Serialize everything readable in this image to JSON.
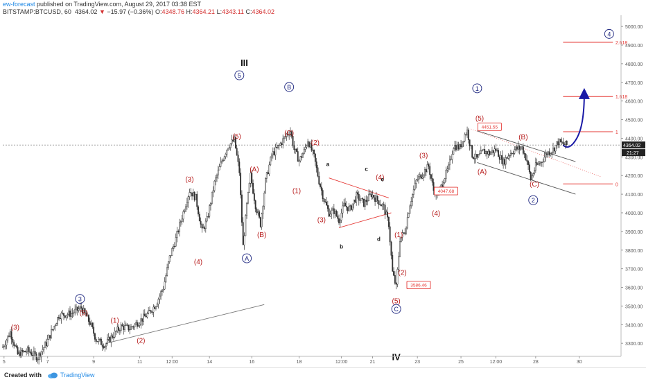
{
  "header": {
    "author": "ew-forecast",
    "published_text": " published on TradingView.com, August 29, 2017 03:38 EST",
    "symbol": "BITSTAMP:BTCUSD, 60",
    "last": "4364.02",
    "change": "−15.97 (−0.36%)",
    "arrow": "▼",
    "o_label": "O:",
    "o": "4348.76",
    "h_label": "H:",
    "h": "4364.21",
    "l_label": "L:",
    "l": "4343.11",
    "c_label": "C:",
    "c": "4364.02"
  },
  "footer": {
    "created_with": "Created with",
    "brand": "TradingView"
  },
  "colors": {
    "wave_red": "#b71c1c",
    "wave_blue": "#1a237e",
    "fib_red": "#e53935",
    "candle": "#333333",
    "arrow": "#1a1aa6"
  },
  "chart_data": {
    "type": "candlestick",
    "symbol": "BITSTAMP:BTCUSD",
    "interval": "60",
    "ylim": [
      3230,
      5060
    ],
    "y_ticks": [
      "5000.00",
      "4900.00",
      "4800.00",
      "4700.00",
      "4600.00",
      "4500.00",
      "4400.00",
      "4300.00",
      "4200.00",
      "4100.00",
      "4000.00",
      "3900.00",
      "3800.00",
      "3700.00",
      "3600.00",
      "3500.00",
      "3400.00",
      "3300.00"
    ],
    "y_tick_values": [
      5000,
      4900,
      4800,
      4700,
      4600,
      4500,
      4400,
      4300,
      4200,
      4100,
      4000,
      3900,
      3800,
      3700,
      3600,
      3500,
      3400,
      3300
    ],
    "x_ticks": [
      "5",
      "7",
      "9",
      "11",
      "12:00",
      "14",
      "16",
      "18",
      "12:00",
      "21",
      "23",
      "25",
      "12:00",
      "28",
      "30"
    ],
    "x_tick_index": [
      1,
      36,
      73,
      110,
      136,
      166,
      200,
      238,
      272,
      297,
      333,
      368,
      396,
      428,
      463
    ],
    "last_price_label": "4364.02",
    "countdown_label": "21:27",
    "price_path": [
      [
        0,
        3280
      ],
      [
        6,
        3360
      ],
      [
        12,
        3240
      ],
      [
        20,
        3260
      ],
      [
        28,
        3225
      ],
      [
        35,
        3300
      ],
      [
        45,
        3450
      ],
      [
        55,
        3460
      ],
      [
        63,
        3490
      ],
      [
        70,
        3410
      ],
      [
        75,
        3320
      ],
      [
        82,
        3290
      ],
      [
        88,
        3340
      ],
      [
        95,
        3390
      ],
      [
        102,
        3380
      ],
      [
        110,
        3420
      ],
      [
        117,
        3460
      ],
      [
        123,
        3510
      ],
      [
        129,
        3600
      ],
      [
        134,
        3760
      ],
      [
        139,
        3860
      ],
      [
        144,
        3980
      ],
      [
        150,
        4120
      ],
      [
        155,
        4080
      ],
      [
        160,
        3900
      ],
      [
        164,
        3960
      ],
      [
        170,
        4160
      ],
      [
        176,
        4280
      ],
      [
        181,
        4360
      ],
      [
        186,
        4390
      ],
      [
        190,
        4220
      ],
      [
        193,
        3820
      ],
      [
        196,
        4040
      ],
      [
        199,
        4200
      ],
      [
        203,
        4040
      ],
      [
        207,
        3940
      ],
      [
        211,
        4170
      ],
      [
        216,
        4310
      ],
      [
        222,
        4360
      ],
      [
        228,
        4420
      ],
      [
        231,
        4440
      ],
      [
        234,
        4340
      ],
      [
        238,
        4280
      ],
      [
        242,
        4330
      ],
      [
        245,
        4390
      ],
      [
        250,
        4300
      ],
      [
        254,
        4170
      ],
      [
        258,
        4070
      ],
      [
        262,
        4000
      ],
      [
        266,
        4010
      ],
      [
        270,
        3960
      ],
      [
        274,
        4040
      ],
      [
        279,
        4020
      ],
      [
        284,
        4090
      ],
      [
        290,
        4050
      ],
      [
        296,
        4100
      ],
      [
        302,
        4060
      ],
      [
        306,
        4030
      ],
      [
        310,
        3940
      ],
      [
        313,
        3680
      ],
      [
        316,
        3600
      ],
      [
        319,
        3860
      ],
      [
        323,
        3900
      ],
      [
        327,
        4050
      ],
      [
        332,
        4170
      ],
      [
        337,
        4210
      ],
      [
        342,
        4250
      ],
      [
        346,
        4120
      ],
      [
        350,
        4100
      ],
      [
        354,
        4180
      ],
      [
        358,
        4240
      ],
      [
        362,
        4360
      ],
      [
        367,
        4350
      ],
      [
        371,
        4420
      ],
      [
        373,
        4440
      ],
      [
        377,
        4310
      ],
      [
        381,
        4290
      ],
      [
        386,
        4330
      ],
      [
        391,
        4320
      ],
      [
        396,
        4340
      ],
      [
        402,
        4270
      ],
      [
        406,
        4310
      ],
      [
        411,
        4340
      ],
      [
        417,
        4350
      ],
      [
        421,
        4280
      ],
      [
        424,
        4180
      ],
      [
        428,
        4250
      ],
      [
        432,
        4270
      ],
      [
        437,
        4320
      ],
      [
        442,
        4340
      ],
      [
        446,
        4380
      ],
      [
        450,
        4370
      ],
      [
        453,
        4364
      ]
    ],
    "labels_blue_circled": [
      {
        "text": "5",
        "i": 190,
        "v": 4738
      },
      {
        "text": "B",
        "i": 230,
        "v": 4675
      },
      {
        "text": "3",
        "i": 62,
        "v": 3538
      },
      {
        "text": "A",
        "i": 196,
        "v": 3756
      },
      {
        "text": "1",
        "i": 381,
        "v": 4668
      },
      {
        "text": "2",
        "i": 426,
        "v": 4068
      },
      {
        "text": "C",
        "i": 316,
        "v": 3484
      },
      {
        "text": "4",
        "i": 487,
        "v": 4960
      }
    ],
    "labels_red": [
      {
        "text": "(3)",
        "i": 10,
        "v": 3388
      },
      {
        "text": "(5)",
        "i": 65,
        "v": 3466
      },
      {
        "text": "(1)",
        "i": 90,
        "v": 3426
      },
      {
        "text": "(2)",
        "i": 111,
        "v": 3317
      },
      {
        "text": "(4)",
        "i": 157,
        "v": 3740
      },
      {
        "text": "(3)",
        "i": 150,
        "v": 4183
      },
      {
        "text": "(5)",
        "i": 188,
        "v": 4413
      },
      {
        "text": "(A)",
        "i": 202,
        "v": 4237
      },
      {
        "text": "(B)",
        "i": 208,
        "v": 3885
      },
      {
        "text": "(C)",
        "i": 230,
        "v": 4431
      },
      {
        "text": "(1)",
        "i": 236,
        "v": 4120
      },
      {
        "text": "(2)",
        "i": 251,
        "v": 4379
      },
      {
        "text": "(3)",
        "i": 256,
        "v": 3965
      },
      {
        "text": "(4)",
        "i": 303,
        "v": 4194
      },
      {
        "text": "(3)",
        "i": 338,
        "v": 4310
      },
      {
        "text": "(4)",
        "i": 348,
        "v": 4000
      },
      {
        "text": "(1)",
        "i": 318,
        "v": 3885
      },
      {
        "text": "(2)",
        "i": 321,
        "v": 3682
      },
      {
        "text": "(5)",
        "i": 316,
        "v": 3530
      },
      {
        "text": "(5)",
        "i": 383,
        "v": 4510
      },
      {
        "text": "(A)",
        "i": 385,
        "v": 4224
      },
      {
        "text": "(B)",
        "i": 418,
        "v": 4410
      },
      {
        "text": "(C)",
        "i": 427,
        "v": 4156
      }
    ],
    "labels_black_bold": [
      {
        "text": "III",
        "i": 194,
        "v": 4807
      },
      {
        "text": "IV",
        "i": 316,
        "v": 3228
      }
    ],
    "labels_triangle": [
      {
        "text": "a",
        "i": 261,
        "v": 4262
      },
      {
        "text": "b",
        "i": 272,
        "v": 3820
      },
      {
        "text": "c",
        "i": 292,
        "v": 4237
      },
      {
        "text": "d",
        "i": 302,
        "v": 3861
      },
      {
        "text": "e",
        "i": 305,
        "v": 4181
      }
    ],
    "price_boxes": [
      {
        "text": "4451.55",
        "i": 391,
        "v": 4460
      },
      {
        "text": "4047.68",
        "i": 356,
        "v": 4115
      },
      {
        "text": "3586.46",
        "i": 334,
        "v": 3611
      }
    ],
    "fib_levels": [
      {
        "label": "2.618",
        "v": 4915
      },
      {
        "label": "1.618",
        "v": 4624
      },
      {
        "label": "1",
        "v": 4435
      },
      {
        "label": "0",
        "v": 4155
      }
    ],
    "trendline_bottom": [
      [
        83,
        3300
      ],
      [
        210,
        3508
      ]
    ],
    "triangle_upper": [
      [
        262,
        4187
      ],
      [
        310,
        4080
      ]
    ],
    "triangle_lower": [
      [
        270,
        3920
      ],
      [
        312,
        4000
      ]
    ],
    "channel_upper": [
      [
        381,
        4440
      ],
      [
        460,
        4275
      ]
    ],
    "channel_lower": [
      [
        381,
        4270
      ],
      [
        460,
        4100
      ]
    ],
    "projection_arrow": [
      [
        450,
        4364
      ],
      [
        455,
        4330
      ],
      [
        461,
        4400
      ],
      [
        467,
        4640
      ]
    ]
  }
}
